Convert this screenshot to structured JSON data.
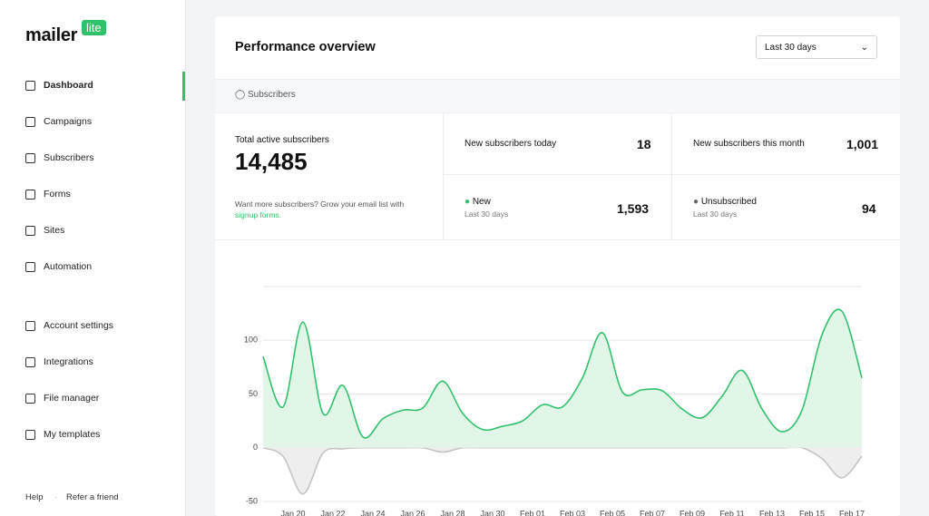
{
  "sidebar": {
    "logo": "mailer",
    "logo_badge": "lite",
    "nav": [
      "Dashboard",
      "Campaigns",
      "Subscribers",
      "Forms",
      "Sites",
      "Automation"
    ],
    "settings": [
      "Account settings",
      "Integrations",
      "File manager",
      "My templates"
    ],
    "footer": [
      "Help",
      "Refer a friend"
    ]
  },
  "header": {
    "title": "Performance overview",
    "date_range": "Last 30 days"
  },
  "tab": "Subscribers",
  "stats": {
    "total_label": "Total active subscribers",
    "total": "14,485",
    "hint": "Want more subscribers? Grow your email list with",
    "hint_link": "signup forms.",
    "today_label": "New subscribers today",
    "today": "18",
    "month_label": "New subscribers this month",
    "month": "1,001",
    "new_label": "New",
    "new_sub": "Last 30 days",
    "new": "1,593",
    "unsub_label": "Unsubscribed",
    "unsub_sub": "Last 30 days",
    "unsub": "94"
  },
  "chart_data": {
    "type": "area",
    "categories": [
      null,
      "Jan 20",
      null,
      "Jan 22",
      null,
      "Jan 24",
      null,
      "Jan 26",
      null,
      "Jan 28",
      null,
      "Jan 30",
      null,
      "Feb 01",
      null,
      "Feb 03",
      null,
      "Feb 05",
      null,
      "Feb 07",
      null,
      "Feb 09",
      null,
      "Feb 11",
      null,
      "Feb 13",
      null,
      "Feb 15",
      null,
      "Feb 17",
      null
    ],
    "series": [
      {
        "color": "#2fc26a",
        "fill": "#e2f6e8",
        "values": [
          85,
          38,
          117,
          32,
          58,
          10,
          27,
          35,
          37,
          62,
          32,
          17,
          20,
          25,
          40,
          38,
          65,
          107,
          52,
          54,
          53,
          36,
          28,
          48,
          72,
          36,
          15,
          35,
          105,
          127,
          65
        ]
      },
      {
        "color": "#c4c4c4",
        "fill": "#eeeeee",
        "values": [
          0,
          -8,
          -43,
          -5,
          -1,
          0,
          0,
          0,
          0,
          -4,
          0,
          0,
          0,
          0,
          0,
          0,
          0,
          0,
          0,
          0,
          0,
          0,
          0,
          0,
          0,
          0,
          0,
          0,
          -10,
          -28,
          -8
        ]
      }
    ],
    "ylim": [
      -50,
      150
    ],
    "yticks": [
      -50,
      0,
      50,
      100
    ],
    "grid": true
  }
}
